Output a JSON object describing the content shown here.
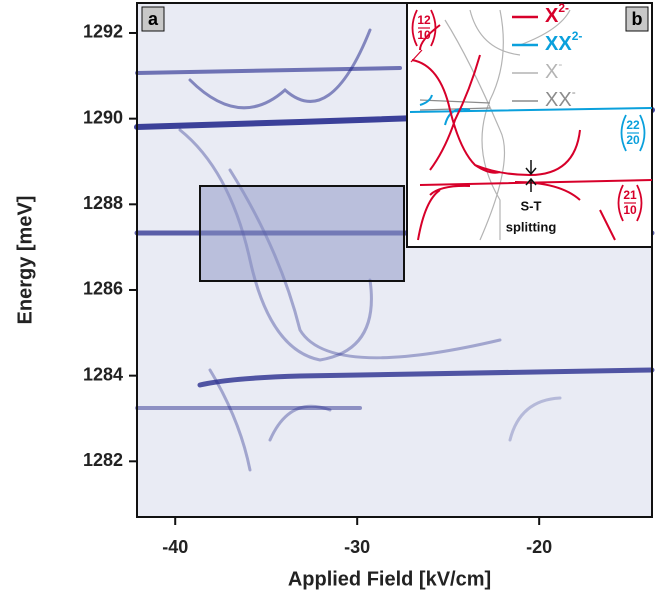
{
  "chart_data": {
    "type": "image-map",
    "x_label": "Applied Field [kV/cm]",
    "y_label": "Energy [meV]",
    "xlim": [
      -42.1,
      -13.8
    ],
    "ylim": [
      1280.7,
      1292.7
    ],
    "xticks": [
      -40,
      -30,
      -20
    ],
    "yticks": [
      1282,
      1284,
      1286,
      1288,
      1290,
      1292
    ],
    "panel_label": "a",
    "background_color": "#e9ebf4",
    "line_color": "#1c2288",
    "inset": {
      "panel_label": "b",
      "legend": [
        {
          "name": "X",
          "superscript": "2-",
          "color": "#d7002a"
        },
        {
          "name": "XX",
          "superscript": "2-",
          "color": "#0aa0dc"
        },
        {
          "name": "X",
          "superscript": "-",
          "color": "#b4b4b4"
        },
        {
          "name": "XX",
          "superscript": "-",
          "color": "#8c8c8c"
        }
      ],
      "states": [
        {
          "top": "12",
          "bottom": "10",
          "color": "#d7002a"
        },
        {
          "top": "22",
          "bottom": "20",
          "color": "#0aa0dc"
        },
        {
          "top": "21",
          "bottom": "10",
          "color": "#d7002a"
        }
      ],
      "annotation": [
        "S-T",
        "splitting"
      ]
    }
  }
}
